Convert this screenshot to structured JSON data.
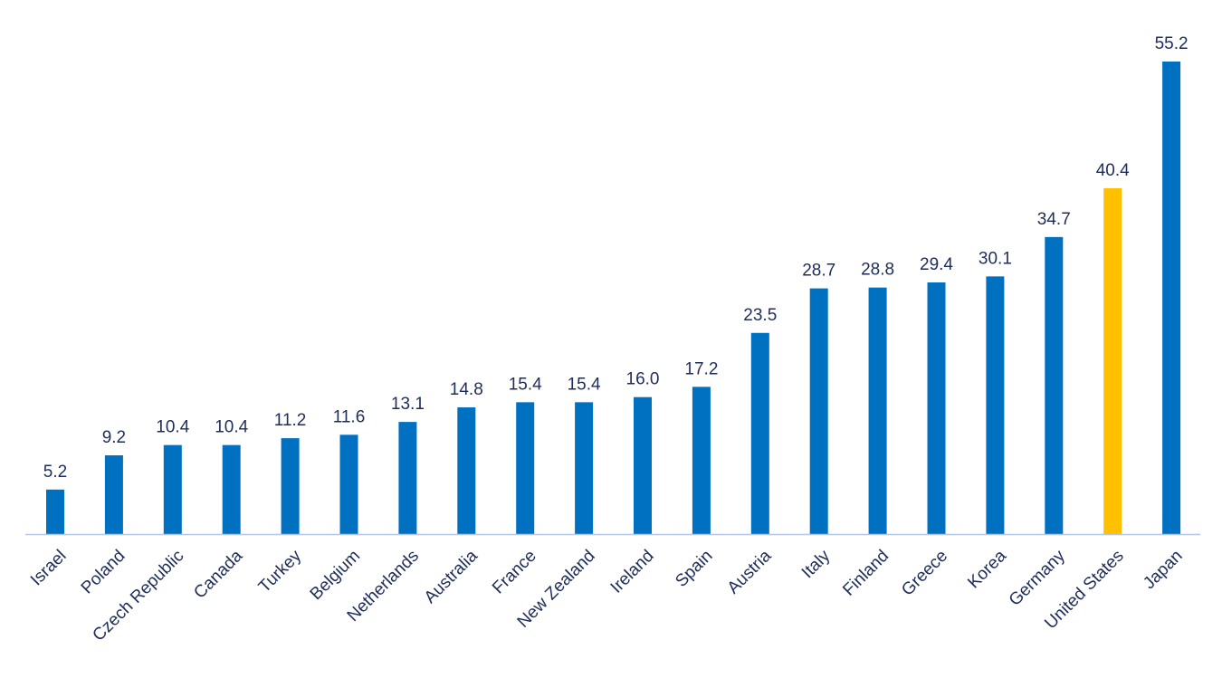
{
  "chart_data": {
    "type": "bar",
    "title": "",
    "xlabel": "",
    "ylabel": "",
    "ylim": [
      0,
      55.2
    ],
    "grid": false,
    "legend": "none",
    "categories": [
      "Israel",
      "Poland",
      "Czech Republic",
      "Canada",
      "Turkey",
      "Belgium",
      "Netherlands",
      "Australia",
      "France",
      "New Zealand",
      "Ireland",
      "Spain",
      "Austria",
      "Italy",
      "Finland",
      "Greece",
      "Korea",
      "Germany",
      "United States",
      "Japan"
    ],
    "values": [
      5.2,
      9.2,
      10.4,
      10.4,
      11.2,
      11.6,
      13.1,
      14.8,
      15.4,
      15.4,
      16.0,
      17.2,
      23.5,
      28.7,
      28.8,
      29.4,
      30.1,
      34.7,
      40.4,
      55.2
    ],
    "value_labels": [
      "5.2",
      "9.2",
      "10.4",
      "10.4",
      "11.2",
      "11.6",
      "13.1",
      "14.8",
      "15.4",
      "15.4",
      "16.0",
      "17.2",
      "23.5",
      "28.7",
      "28.8",
      "29.4",
      "30.1",
      "34.7",
      "40.4",
      "55.2"
    ],
    "highlight_category": "United States",
    "colors": {
      "bar": "#0070c0",
      "highlight": "#ffc000",
      "axis": "#b4c7e7",
      "text": "#1f2d5a"
    }
  }
}
